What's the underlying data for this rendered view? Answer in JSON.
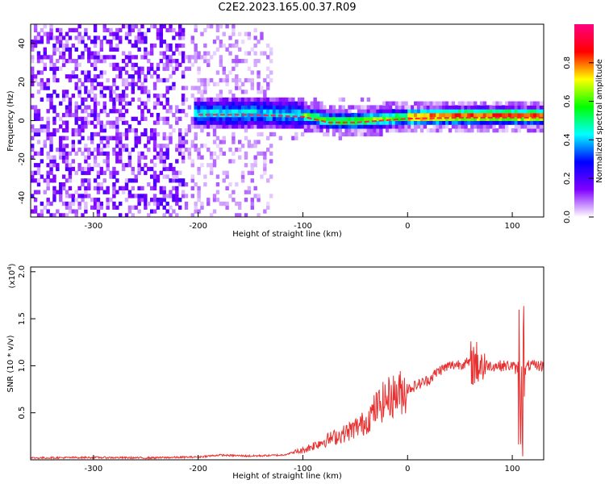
{
  "title": "C2E2.2023.165.00.37.R09",
  "chart_data": [
    {
      "type": "heatmap",
      "xlabel": "Height of straight line (km)",
      "ylabel": "Frequency (Hz)",
      "xlim": [
        -360,
        130
      ],
      "ylim": [
        -50,
        50
      ],
      "xticks": [
        -300,
        -200,
        -100,
        0,
        100
      ],
      "yticks": [
        -40,
        -20,
        0,
        20,
        40
      ],
      "colorbar": {
        "label": "Normalized spectral amplitude",
        "range": [
          0,
          1
        ],
        "ticks": [
          "0.0",
          "0.2",
          "0.4",
          "0.6",
          "0.8"
        ],
        "stops": [
          "#ffffff",
          "#8000ff",
          "#0000ff",
          "#00ffff",
          "#00ff00",
          "#ffff00",
          "#ff0000",
          "#ff0080"
        ]
      },
      "ridge": [
        {
          "x": -200,
          "y": 3
        },
        {
          "x": -150,
          "y": 3
        },
        {
          "x": -100,
          "y": 2
        },
        {
          "x": -75,
          "y": -1
        },
        {
          "x": -50,
          "y": -1
        },
        {
          "x": -25,
          "y": 0
        },
        {
          "x": 0,
          "y": 1
        },
        {
          "x": 50,
          "y": 1.5
        },
        {
          "x": 100,
          "y": 1.5
        },
        {
          "x": 130,
          "y": 1.5
        }
      ]
    },
    {
      "type": "line",
      "xlabel": "Height of straight line (km)",
      "ylabel": "SNR (10 * v/v)",
      "exponent": "(x10",
      "exponent_power": "4",
      "exponent_close": ")",
      "xlim": [
        -360,
        130
      ],
      "ylim": [
        0,
        2.05
      ],
      "xticks": [
        -300,
        -200,
        -100,
        0,
        100
      ],
      "yticks": [
        "0.5",
        "1.0",
        "1.5",
        "2.0"
      ],
      "color": "#e83030",
      "series": [
        {
          "x": [
            -360,
            -300,
            -250,
            -200,
            -180,
            -150,
            -120,
            -100,
            -80,
            -60,
            -40,
            -30,
            -20,
            -10,
            0,
            10,
            20,
            30,
            40,
            50,
            60,
            70,
            80,
            90,
            100,
            105,
            110,
            115,
            120,
            130
          ],
          "values": [
            0.02,
            0.025,
            0.02,
            0.03,
            0.05,
            0.04,
            0.05,
            0.1,
            0.2,
            0.28,
            0.4,
            0.55,
            0.65,
            0.7,
            0.75,
            0.8,
            0.85,
            0.95,
            1.0,
            1.02,
            1.03,
            1.02,
            1.0,
            1.0,
            1.0,
            0.95,
            0.9,
            1.0,
            1.0,
            1.0
          ]
        }
      ]
    }
  ]
}
